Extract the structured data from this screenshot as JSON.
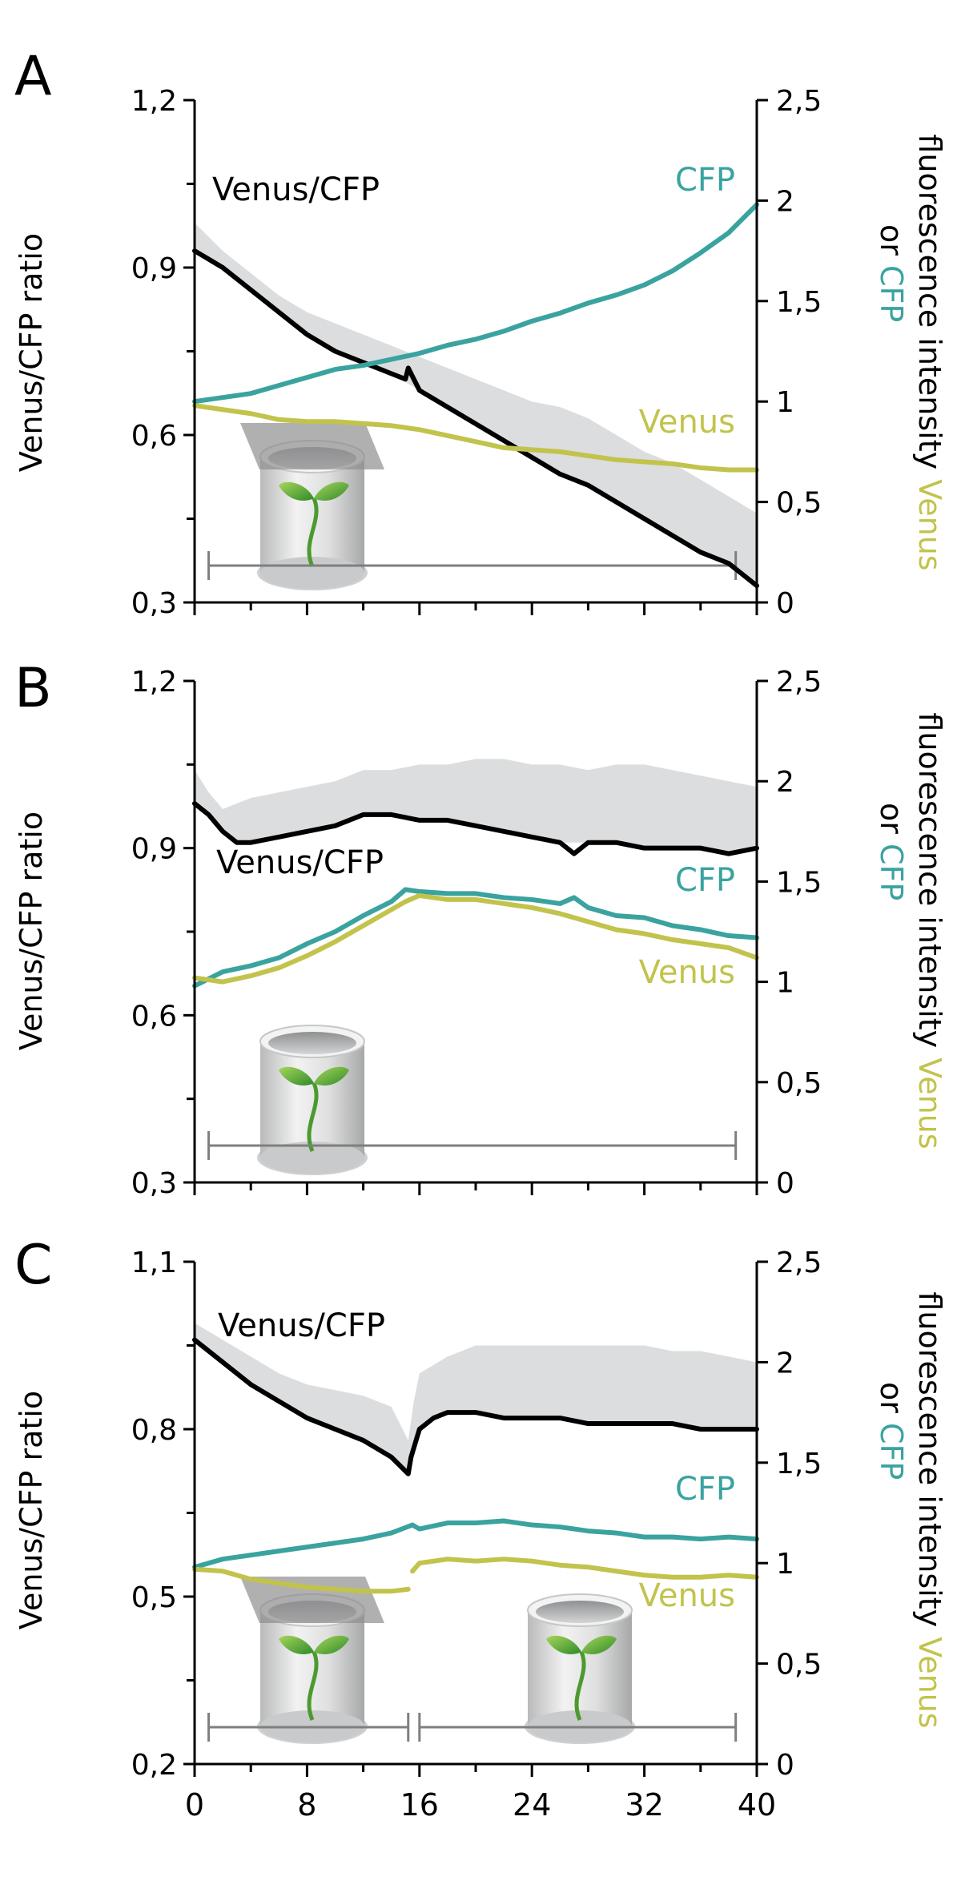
{
  "colors": {
    "ratio": "#000000",
    "cfp": "#3aa39f",
    "venus": "#c2c34c",
    "band": "#d9dadb",
    "axis": "#000000",
    "bracket": "#7f7f7f"
  },
  "chart_data": [
    {
      "panel": "A",
      "type": "line",
      "ylabel_left": "Venus/CFP ratio",
      "ylabel_right": {
        "part1": "fluorescence intensity",
        "venus_word": "Venus",
        "or_word": "or",
        "cfp_word": "CFP"
      },
      "y_left_range": [
        0.3,
        1.2
      ],
      "y_left_ticks": [
        "0,3",
        "0,6",
        "0,9",
        "1,2"
      ],
      "y_left_tick_values": [
        0.3,
        0.6,
        0.9,
        1.2
      ],
      "y_right_range": [
        0,
        2.5
      ],
      "y_right_ticks": [
        "0",
        "0,5",
        "1",
        "1,5",
        "2",
        "2,5"
      ],
      "y_right_tick_values": [
        0,
        0.5,
        1,
        1.5,
        2,
        2.5
      ],
      "x_range": [
        0,
        40
      ],
      "legend": {
        "ratio": "Venus/CFP",
        "cfp": "CFP",
        "venus": "Venus"
      },
      "condition": "covered",
      "series": [
        {
          "name": "Venus/CFP",
          "axis": "left",
          "x": [
            0,
            2,
            4,
            6,
            8,
            10,
            12,
            14,
            15,
            15.2,
            16,
            18,
            20,
            22,
            24,
            26,
            28,
            30,
            32,
            34,
            36,
            38,
            39,
            40
          ],
          "y": [
            0.93,
            0.9,
            0.86,
            0.82,
            0.78,
            0.75,
            0.73,
            0.71,
            0.7,
            0.72,
            0.68,
            0.65,
            0.62,
            0.59,
            0.56,
            0.53,
            0.51,
            0.48,
            0.45,
            0.42,
            0.39,
            0.37,
            0.35,
            0.33
          ]
        },
        {
          "name": "CFP",
          "axis": "right",
          "x": [
            0,
            2,
            4,
            6,
            8,
            10,
            12,
            14,
            16,
            18,
            20,
            22,
            24,
            26,
            28,
            30,
            32,
            34,
            36,
            38,
            40
          ],
          "y": [
            1.0,
            1.02,
            1.04,
            1.08,
            1.12,
            1.16,
            1.18,
            1.21,
            1.24,
            1.28,
            1.31,
            1.35,
            1.4,
            1.44,
            1.49,
            1.53,
            1.58,
            1.65,
            1.74,
            1.84,
            1.98
          ]
        },
        {
          "name": "Venus",
          "axis": "right",
          "x": [
            0,
            2,
            4,
            6,
            8,
            10,
            12,
            14,
            16,
            18,
            20,
            22,
            24,
            26,
            28,
            30,
            32,
            34,
            36,
            38,
            40
          ],
          "y": [
            0.98,
            0.96,
            0.94,
            0.91,
            0.9,
            0.9,
            0.89,
            0.88,
            0.86,
            0.83,
            0.8,
            0.77,
            0.76,
            0.75,
            0.73,
            0.71,
            0.7,
            0.69,
            0.67,
            0.66,
            0.66
          ]
        }
      ],
      "band": {
        "axis": "left",
        "x": [
          0,
          2,
          4,
          6,
          8,
          10,
          12,
          14,
          16,
          18,
          20,
          22,
          24,
          26,
          28,
          30,
          32,
          34,
          36,
          38,
          40
        ],
        "upper": [
          0.98,
          0.93,
          0.89,
          0.85,
          0.82,
          0.8,
          0.78,
          0.76,
          0.74,
          0.72,
          0.7,
          0.68,
          0.66,
          0.65,
          0.63,
          0.6,
          0.57,
          0.55,
          0.52,
          0.49,
          0.46
        ],
        "lower": [
          0.93,
          0.9,
          0.86,
          0.82,
          0.78,
          0.75,
          0.73,
          0.71,
          0.68,
          0.65,
          0.62,
          0.59,
          0.56,
          0.53,
          0.51,
          0.48,
          0.45,
          0.42,
          0.39,
          0.37,
          0.33
        ]
      },
      "brackets": [
        {
          "x_start": 1,
          "x_end": 38.5
        }
      ]
    },
    {
      "panel": "B",
      "type": "line",
      "ylabel_left": "Venus/CFP ratio",
      "ylabel_right": {
        "part1": "fluorescence intensity",
        "venus_word": "Venus",
        "or_word": "or",
        "cfp_word": "CFP"
      },
      "y_left_range": [
        0.3,
        1.2
      ],
      "y_left_ticks": [
        "0,3",
        "0,6",
        "0,9",
        "1,2"
      ],
      "y_left_tick_values": [
        0.3,
        0.6,
        0.9,
        1.2
      ],
      "y_right_range": [
        0,
        2.5
      ],
      "y_right_ticks": [
        "0",
        "0,5",
        "1",
        "1,5",
        "2",
        "2,5"
      ],
      "y_right_tick_values": [
        0,
        0.5,
        1,
        1.5,
        2,
        2.5
      ],
      "x_range": [
        0,
        40
      ],
      "legend": {
        "ratio": "Venus/CFP",
        "cfp": "CFP",
        "venus": "Venus"
      },
      "condition": "open",
      "series": [
        {
          "name": "Venus/CFP",
          "axis": "left",
          "x": [
            0,
            1,
            2,
            3,
            4,
            6,
            8,
            10,
            12,
            14,
            16,
            18,
            20,
            22,
            24,
            26,
            27,
            28,
            30,
            32,
            34,
            36,
            38,
            40
          ],
          "y": [
            0.98,
            0.96,
            0.93,
            0.91,
            0.91,
            0.92,
            0.93,
            0.94,
            0.96,
            0.96,
            0.95,
            0.95,
            0.94,
            0.93,
            0.92,
            0.91,
            0.89,
            0.91,
            0.91,
            0.9,
            0.9,
            0.9,
            0.89,
            0.9
          ]
        },
        {
          "name": "CFP",
          "axis": "right",
          "x": [
            0,
            2,
            4,
            6,
            8,
            10,
            12,
            14,
            15,
            16,
            18,
            20,
            22,
            24,
            26,
            27,
            28,
            30,
            32,
            34,
            36,
            38,
            40
          ],
          "y": [
            0.98,
            1.05,
            1.08,
            1.12,
            1.19,
            1.25,
            1.33,
            1.4,
            1.46,
            1.45,
            1.44,
            1.44,
            1.42,
            1.41,
            1.39,
            1.42,
            1.37,
            1.33,
            1.32,
            1.28,
            1.26,
            1.23,
            1.22
          ]
        },
        {
          "name": "Venus",
          "axis": "right",
          "x": [
            0,
            2,
            4,
            6,
            8,
            10,
            12,
            14,
            15,
            16,
            18,
            20,
            22,
            24,
            26,
            28,
            30,
            32,
            34,
            36,
            38,
            40
          ],
          "y": [
            1.02,
            1.0,
            1.03,
            1.07,
            1.13,
            1.2,
            1.28,
            1.36,
            1.4,
            1.43,
            1.41,
            1.41,
            1.39,
            1.37,
            1.34,
            1.3,
            1.26,
            1.24,
            1.21,
            1.19,
            1.17,
            1.12
          ]
        }
      ],
      "band": {
        "axis": "left",
        "x": [
          0,
          1,
          2,
          3,
          4,
          6,
          8,
          10,
          12,
          14,
          16,
          18,
          20,
          22,
          24,
          26,
          28,
          30,
          32,
          34,
          36,
          38,
          40
        ],
        "upper": [
          1.04,
          1.0,
          0.97,
          0.98,
          0.99,
          1.0,
          1.01,
          1.02,
          1.04,
          1.04,
          1.05,
          1.05,
          1.06,
          1.06,
          1.05,
          1.05,
          1.04,
          1.05,
          1.05,
          1.04,
          1.03,
          1.02,
          1.01
        ],
        "lower": [
          0.98,
          0.96,
          0.93,
          0.91,
          0.91,
          0.92,
          0.93,
          0.94,
          0.96,
          0.96,
          0.95,
          0.95,
          0.94,
          0.93,
          0.92,
          0.91,
          0.91,
          0.91,
          0.9,
          0.9,
          0.9,
          0.89,
          0.9
        ]
      },
      "brackets": [
        {
          "x_start": 1,
          "x_end": 38.5
        }
      ]
    },
    {
      "panel": "C",
      "type": "line",
      "ylabel_left": "Venus/CFP ratio",
      "ylabel_right": {
        "part1": "fluorescence intensity",
        "venus_word": "Venus",
        "or_word": "or",
        "cfp_word": "CFP"
      },
      "y_left_range": [
        0.2,
        1.1
      ],
      "y_left_ticks": [
        "0,2",
        "0,5",
        "0,8",
        "1,1"
      ],
      "y_left_tick_values": [
        0.2,
        0.5,
        0.8,
        1.1
      ],
      "y_right_range": [
        0,
        2.5
      ],
      "y_right_ticks": [
        "0",
        "0,5",
        "1",
        "1,5",
        "2",
        "2,5"
      ],
      "y_right_tick_values": [
        0,
        0.5,
        1,
        1.5,
        2,
        2.5
      ],
      "x_range": [
        0,
        40
      ],
      "x_ticks": [
        "0",
        "8",
        "16",
        "24",
        "32",
        "40"
      ],
      "x_tick_values": [
        0,
        8,
        16,
        24,
        32,
        40
      ],
      "legend": {
        "ratio": "Venus/CFP",
        "cfp": "CFP",
        "venus": "Venus"
      },
      "condition": "covered then open",
      "series": [
        {
          "name": "Venus/CFP",
          "axis": "left",
          "x": [
            0,
            2,
            4,
            6,
            8,
            10,
            12,
            14,
            15.2,
            15.4,
            16,
            17,
            18,
            20,
            22,
            24,
            26,
            28,
            30,
            32,
            34,
            36,
            38,
            40
          ],
          "y": [
            0.96,
            0.92,
            0.88,
            0.85,
            0.82,
            0.8,
            0.78,
            0.75,
            0.72,
            0.75,
            0.8,
            0.82,
            0.83,
            0.83,
            0.82,
            0.82,
            0.82,
            0.81,
            0.81,
            0.81,
            0.81,
            0.8,
            0.8,
            0.8
          ]
        },
        {
          "name": "CFP",
          "axis": "right",
          "x": [
            0,
            2,
            4,
            6,
            8,
            10,
            12,
            14,
            15.5,
            16,
            18,
            20,
            22,
            24,
            26,
            28,
            30,
            32,
            34,
            36,
            38,
            40
          ],
          "y": [
            0.98,
            1.02,
            1.04,
            1.06,
            1.08,
            1.1,
            1.12,
            1.15,
            1.19,
            1.17,
            1.2,
            1.2,
            1.21,
            1.19,
            1.18,
            1.16,
            1.15,
            1.13,
            1.13,
            1.12,
            1.13,
            1.12
          ]
        },
        {
          "name": "Venus",
          "axis": "right",
          "x": [
            0,
            2,
            4,
            6,
            8,
            10,
            12,
            14,
            15.2
          ],
          "y": [
            0.97,
            0.96,
            0.92,
            0.9,
            0.88,
            0.87,
            0.86,
            0.86,
            0.87
          ]
        },
        {
          "name": "Venus",
          "axis": "right",
          "x": [
            15.5,
            16,
            18,
            20,
            22,
            24,
            26,
            28,
            30,
            32,
            34,
            36,
            38,
            40
          ],
          "y": [
            0.96,
            1.0,
            1.02,
            1.01,
            1.02,
            1.01,
            0.99,
            0.98,
            0.96,
            0.94,
            0.93,
            0.93,
            0.94,
            0.93
          ]
        }
      ],
      "band": {
        "axis": "left",
        "x": [
          0,
          2,
          4,
          6,
          8,
          10,
          12,
          14,
          15.2,
          15.6,
          16,
          18,
          20,
          22,
          24,
          26,
          28,
          30,
          32,
          34,
          36,
          38,
          40
        ],
        "upper": [
          0.99,
          0.96,
          0.93,
          0.9,
          0.88,
          0.87,
          0.86,
          0.84,
          0.78,
          0.85,
          0.9,
          0.93,
          0.95,
          0.95,
          0.95,
          0.95,
          0.95,
          0.95,
          0.95,
          0.94,
          0.94,
          0.93,
          0.92
        ],
        "lower": [
          0.96,
          0.92,
          0.88,
          0.85,
          0.82,
          0.8,
          0.78,
          0.75,
          0.72,
          0.75,
          0.8,
          0.83,
          0.83,
          0.82,
          0.82,
          0.82,
          0.81,
          0.81,
          0.81,
          0.81,
          0.8,
          0.8,
          0.8
        ]
      },
      "brackets": [
        {
          "x_start": 1,
          "x_end": 15.2
        },
        {
          "x_start": 16,
          "x_end": 38.5
        }
      ]
    }
  ]
}
